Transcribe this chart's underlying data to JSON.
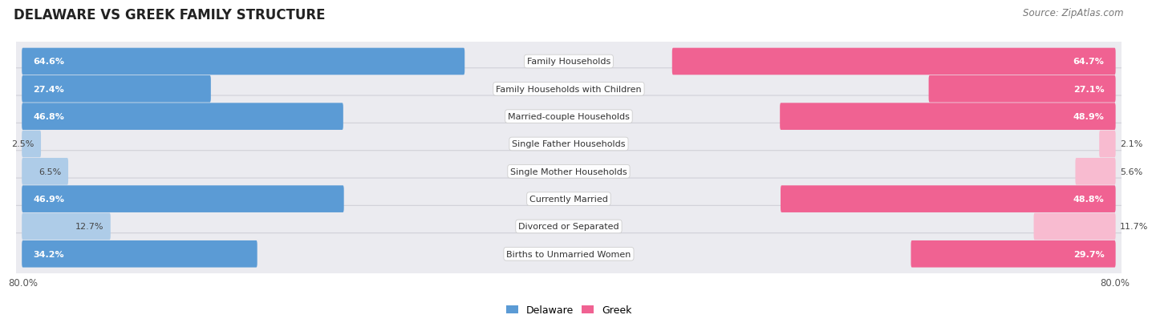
{
  "title": "DELAWARE VS GREEK FAMILY STRUCTURE",
  "source": "Source: ZipAtlas.com",
  "categories": [
    "Family Households",
    "Family Households with Children",
    "Married-couple Households",
    "Single Father Households",
    "Single Mother Households",
    "Currently Married",
    "Divorced or Separated",
    "Births to Unmarried Women"
  ],
  "delaware_values": [
    64.6,
    27.4,
    46.8,
    2.5,
    6.5,
    46.9,
    12.7,
    34.2
  ],
  "greek_values": [
    64.7,
    27.1,
    48.9,
    2.1,
    5.6,
    48.8,
    11.7,
    29.7
  ],
  "delaware_color_dark": "#5b9bd5",
  "delaware_color_light": "#aecce8",
  "greek_color_dark": "#f06292",
  "greek_color_light": "#f8bbd0",
  "delaware_label": "Delaware",
  "greek_label": "Greek",
  "axis_max": 80.0,
  "row_bg_color": "#ebebf0",
  "title_fontsize": 12,
  "source_fontsize": 8.5,
  "cat_label_fontsize": 8,
  "value_fontsize": 8,
  "legend_fontsize": 9,
  "dark_threshold": 20.0
}
